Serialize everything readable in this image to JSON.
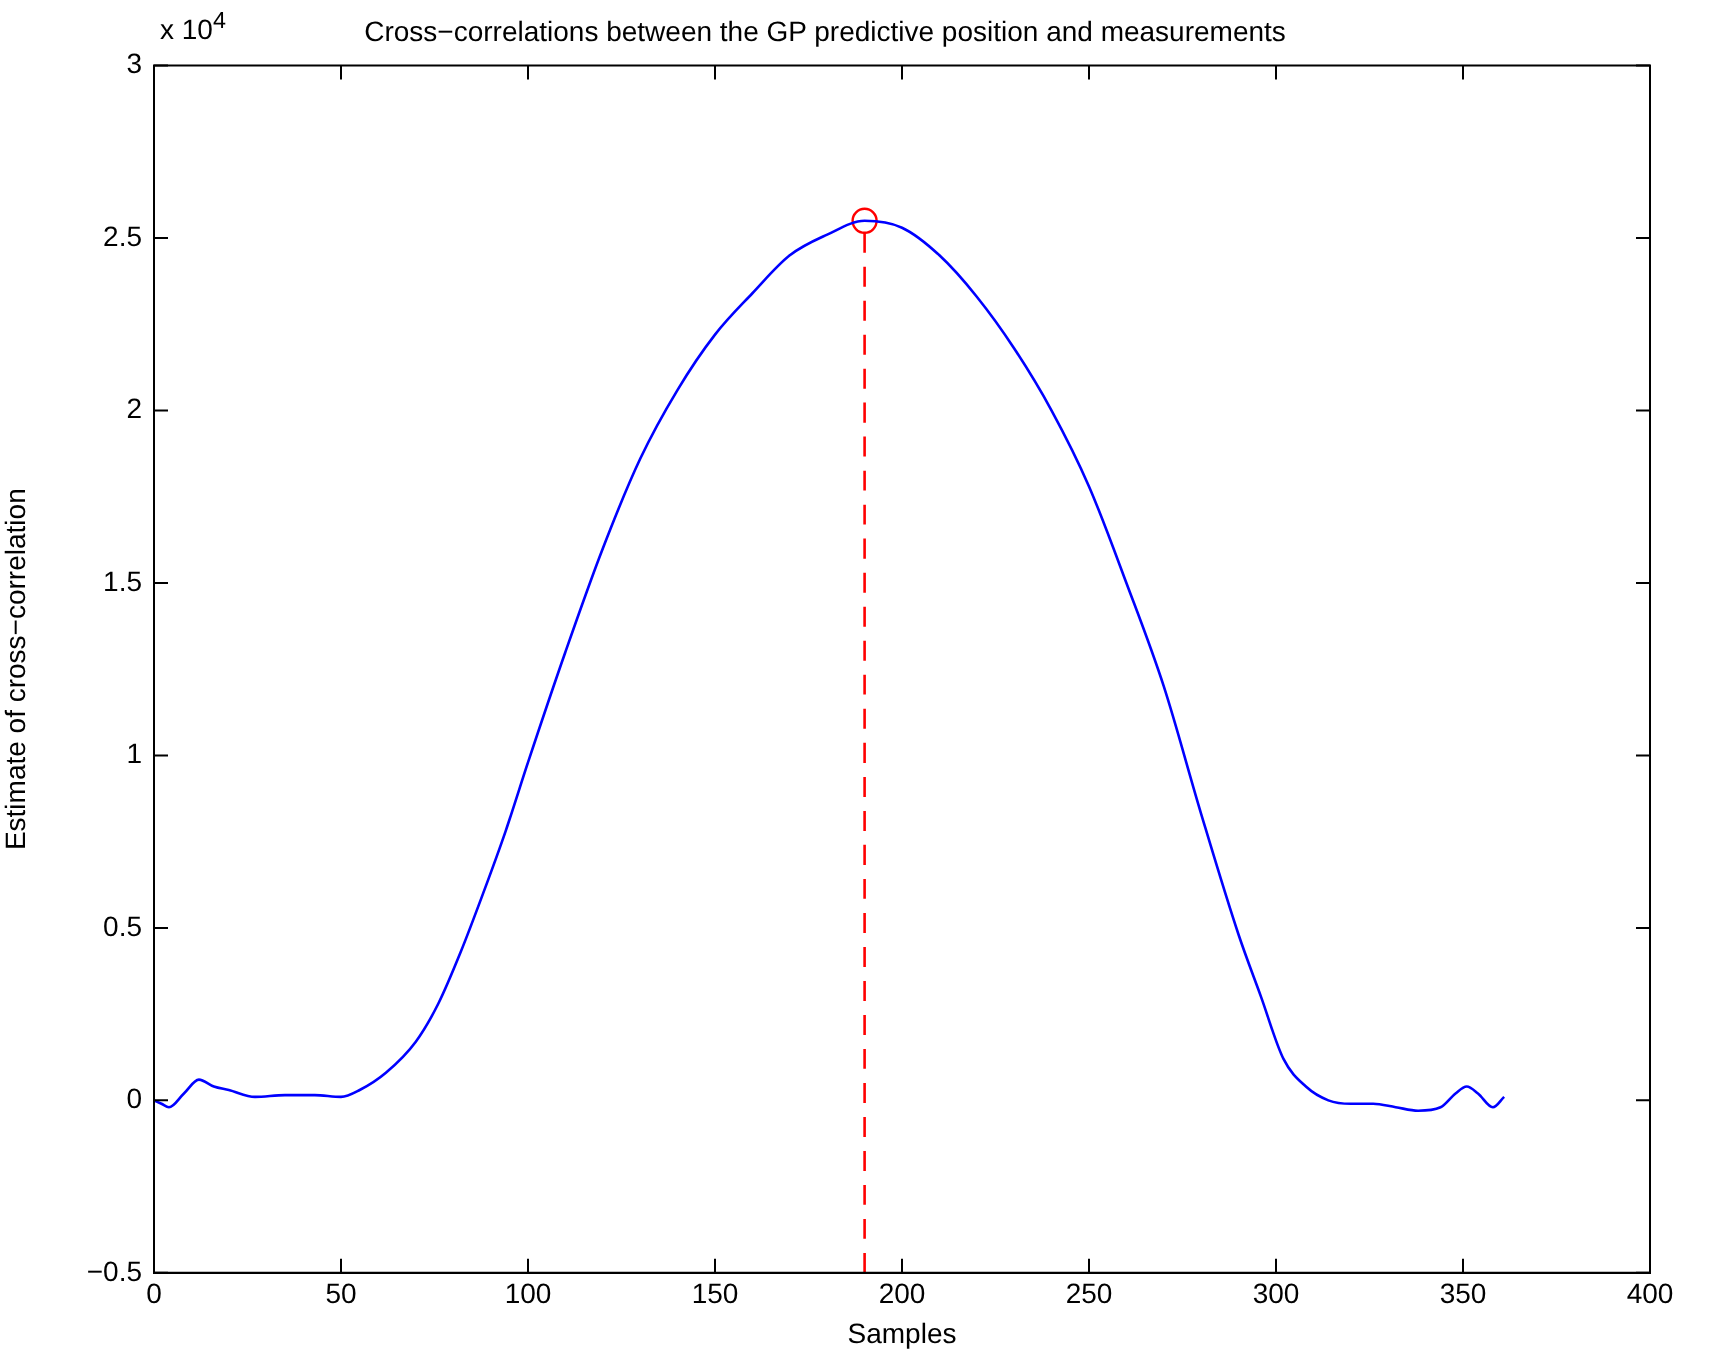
{
  "chart_data": {
    "type": "line",
    "title": "Cross−correlations between the GP predictive position and measurements",
    "xlabel": "Samples",
    "ylabel": "Estimate of cross−correlation",
    "annotations": [
      "x 10$^{4}$"
    ],
    "xlim": [
      0,
      400
    ],
    "xticks": [
      0,
      50,
      100,
      150,
      200,
      250,
      300,
      350,
      400
    ],
    "ylim": [
      -0.5,
      3
    ],
    "yticks": [
      {
        "value": -0.5,
        "label": "−0.5"
      },
      0,
      0.5,
      1,
      1.5,
      2,
      2.5,
      3
    ],
    "grid": false,
    "legend": false,
    "series": [
      {
        "color": "#0000ff",
        "line_style": "solid",
        "marker": "none",
        "x": [
          0,
          2,
          4,
          8,
          12,
          16,
          20,
          27,
          35,
          43,
          50,
          55,
          62,
          70,
          76,
          82,
          88,
          94,
          100,
          110,
          120,
          130,
          140,
          150,
          160,
          170,
          180,
          190,
          200,
          210,
          220,
          230,
          240,
          250,
          260,
          270,
          280,
          290,
          296,
          302,
          308,
          314,
          320,
          326,
          332,
          338,
          344,
          348,
          351,
          354,
          358,
          361
        ],
        "values": [
          0,
          -0.01,
          -0.02,
          0.02,
          0.06,
          0.04,
          0.03,
          0.01,
          0.015,
          0.015,
          0.01,
          0.03,
          0.08,
          0.17,
          0.28,
          0.43,
          0.6,
          0.78,
          0.98,
          1.3,
          1.6,
          1.86,
          2.06,
          2.22,
          2.34,
          2.45,
          2.51,
          2.55,
          2.53,
          2.45,
          2.33,
          2.18,
          2.0,
          1.78,
          1.5,
          1.2,
          0.83,
          0.48,
          0.3,
          0.12,
          0.04,
          0,
          -0.01,
          -0.01,
          -0.02,
          -0.03,
          -0.02,
          0.02,
          0.04,
          0.02,
          -0.02,
          0.01
        ]
      },
      {
        "type": "line",
        "color": "#ff0000",
        "line_style": "dashed",
        "marker": "none",
        "x": [
          190,
          190
        ],
        "values": [
          -0.5,
          2.55
        ]
      },
      {
        "type": "scatter",
        "color": "#ff0000",
        "marker": "circle",
        "x": [
          190
        ],
        "values": [
          2.55
        ]
      }
    ]
  }
}
